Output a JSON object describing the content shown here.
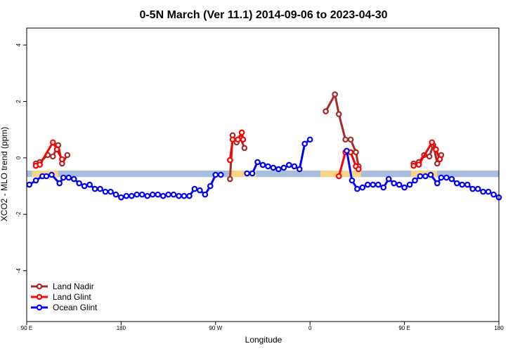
{
  "chart_data": {
    "type": "line",
    "title": "0-5N March (Ver 11.1)   2014-09-06 to 2023-04-30",
    "xlabel": "Longitude",
    "ylabel": "XCO2 - MLO trend (ppm)",
    "xlim": [
      0,
      360
    ],
    "ylim": [
      -5.8,
      4.6
    ],
    "x_ticks": [
      {
        "value": 0,
        "label": "90 E"
      },
      {
        "value": 72,
        "label": "180"
      },
      {
        "value": 144,
        "label": "90 W"
      },
      {
        "value": 216,
        "label": "0"
      },
      {
        "value": 288,
        "label": "90 E"
      },
      {
        "value": 360,
        "label": "180"
      }
    ],
    "y_ticks": [
      {
        "value": 4,
        "label": "4"
      },
      {
        "value": 2,
        "label": "2"
      },
      {
        "value": 0,
        "label": "0"
      },
      {
        "value": -2,
        "label": "-2"
      },
      {
        "value": -4,
        "label": "-4"
      }
    ],
    "grid": false,
    "legend": {
      "placement": "bottom-left"
    },
    "bands": [
      {
        "color": "#a8bedc",
        "y_range": [
          -0.68,
          -0.45
        ],
        "x_range": [
          0,
          360
        ]
      },
      {
        "color": "#f8d488",
        "segments": [
          {
            "x": [
              4,
              24
            ],
            "y": [
              -0.68,
              -0.45
            ]
          },
          {
            "x": [
              155,
              175
            ],
            "y": [
              -0.68,
              -0.45
            ]
          },
          {
            "x": [
              224,
              255
            ],
            "y": [
              -0.68,
              -0.45
            ]
          },
          {
            "x": [
              293,
              313
            ],
            "y": [
              -0.68,
              -0.45
            ]
          }
        ]
      }
    ],
    "series": [
      {
        "name": "Land Nadir",
        "color": "#a52a2a",
        "segments": [
          [
            [
              7,
              -0.2
            ],
            [
              10,
              -0.15
            ],
            [
              16,
              0.1
            ],
            [
              20,
              0.05
            ],
            [
              24,
              0.45
            ],
            [
              27,
              -0.2
            ],
            [
              31,
              0.1
            ]
          ],
          [
            [
              155,
              -0.75
            ],
            [
              157,
              0.8
            ],
            [
              160,
              0.55
            ],
            [
              163,
              0.7
            ],
            [
              166,
              0.35
            ]
          ],
          [
            [
              228,
              1.65
            ],
            [
              235,
              2.25
            ],
            [
              238,
              1.55
            ],
            [
              243,
              0.65
            ],
            [
              247,
              0.65
            ],
            [
              251,
              0.2
            ],
            [
              253,
              -0.3
            ]
          ],
          [
            [
              295,
              -0.2
            ],
            [
              299,
              -0.15
            ],
            [
              303,
              0.1
            ],
            [
              307,
              0.05
            ],
            [
              310,
              0.45
            ],
            [
              313,
              -0.2
            ],
            [
              316,
              0.1
            ]
          ]
        ]
      },
      {
        "name": "Land Glint",
        "color": "#ff0000",
        "segments": [
          [
            [
              7,
              -0.28
            ],
            [
              10,
              -0.24
            ],
            [
              20,
              0.55
            ],
            [
              23,
              0.3
            ],
            [
              27,
              -0.05
            ]
          ],
          [
            [
              155,
              -0.08
            ],
            [
              157,
              0.65
            ],
            [
              161,
              0.65
            ],
            [
              164,
              0.9
            ],
            [
              165,
              0.65
            ]
          ],
          [
            [
              238,
              -0.65
            ],
            [
              243,
              0.2
            ],
            [
              247,
              0.2
            ],
            [
              251,
              -0.3
            ],
            [
              253,
              -0.4
            ]
          ],
          [
            [
              295,
              -0.28
            ],
            [
              299,
              -0.24
            ],
            [
              309,
              0.55
            ],
            [
              312,
              0.3
            ],
            [
              315,
              -0.05
            ]
          ]
        ]
      },
      {
        "name": "Ocean Glint",
        "color": "#0000ff",
        "segments": [
          [
            [
              2,
              -0.95
            ],
            [
              7,
              -0.8
            ],
            [
              12,
              -0.65
            ],
            [
              15,
              -0.65
            ],
            [
              19,
              -0.6
            ],
            [
              25,
              -0.9
            ],
            [
              28,
              -0.7
            ],
            [
              32,
              -0.7
            ],
            [
              36,
              -0.75
            ],
            [
              40,
              -0.9
            ],
            [
              44,
              -1.0
            ],
            [
              48,
              -0.95
            ],
            [
              52,
              -1.1
            ],
            [
              56,
              -1.1
            ],
            [
              60,
              -1.2
            ],
            [
              64,
              -1.2
            ],
            [
              68,
              -1.3
            ],
            [
              72,
              -1.4
            ],
            [
              76,
              -1.35
            ],
            [
              80,
              -1.35
            ],
            [
              84,
              -1.3
            ],
            [
              88,
              -1.3
            ],
            [
              92,
              -1.35
            ],
            [
              96,
              -1.3
            ],
            [
              100,
              -1.3
            ],
            [
              104,
              -1.35
            ],
            [
              108,
              -1.3
            ],
            [
              112,
              -1.3
            ],
            [
              116,
              -1.35
            ],
            [
              120,
              -1.35
            ],
            [
              124,
              -1.35
            ],
            [
              128,
              -1.1
            ],
            [
              132,
              -1.15
            ],
            [
              136,
              -1.3
            ],
            [
              140,
              -1.0
            ],
            [
              144,
              -0.6
            ],
            [
              148,
              -0.6
            ]
          ],
          [
            [
              168,
              -0.55
            ],
            [
              172,
              -0.55
            ],
            [
              176,
              -0.15
            ],
            [
              180,
              -0.25
            ],
            [
              184,
              -0.3
            ],
            [
              188,
              -0.35
            ],
            [
              192,
              -0.4
            ],
            [
              196,
              -0.35
            ],
            [
              200,
              -0.25
            ],
            [
              204,
              -0.3
            ],
            [
              208,
              -0.4
            ],
            [
              212,
              0.5
            ],
            [
              216,
              0.65
            ]
          ],
          [
            [
              244,
              0.25
            ],
            [
              248,
              -0.8
            ],
            [
              252,
              -1.1
            ],
            [
              256,
              -1.05
            ],
            [
              260,
              -0.95
            ],
            [
              264,
              -0.95
            ],
            [
              268,
              -0.95
            ],
            [
              272,
              -1.05
            ],
            [
              276,
              -0.75
            ],
            [
              280,
              -0.9
            ],
            [
              284,
              -0.95
            ],
            [
              288,
              -1.05
            ],
            [
              292,
              -0.95
            ],
            [
              296,
              -0.8
            ],
            [
              300,
              -0.65
            ],
            [
              304,
              -0.65
            ],
            [
              308,
              -0.6
            ],
            [
              313,
              -0.9
            ],
            [
              316,
              -0.7
            ],
            [
              320,
              -0.7
            ],
            [
              324,
              -0.75
            ],
            [
              328,
              -0.9
            ],
            [
              332,
              -0.95
            ],
            [
              336,
              -0.95
            ],
            [
              340,
              -1.1
            ],
            [
              344,
              -1.1
            ],
            [
              348,
              -1.2
            ],
            [
              352,
              -1.2
            ],
            [
              356,
              -1.3
            ],
            [
              360,
              -1.4
            ]
          ]
        ]
      }
    ]
  }
}
